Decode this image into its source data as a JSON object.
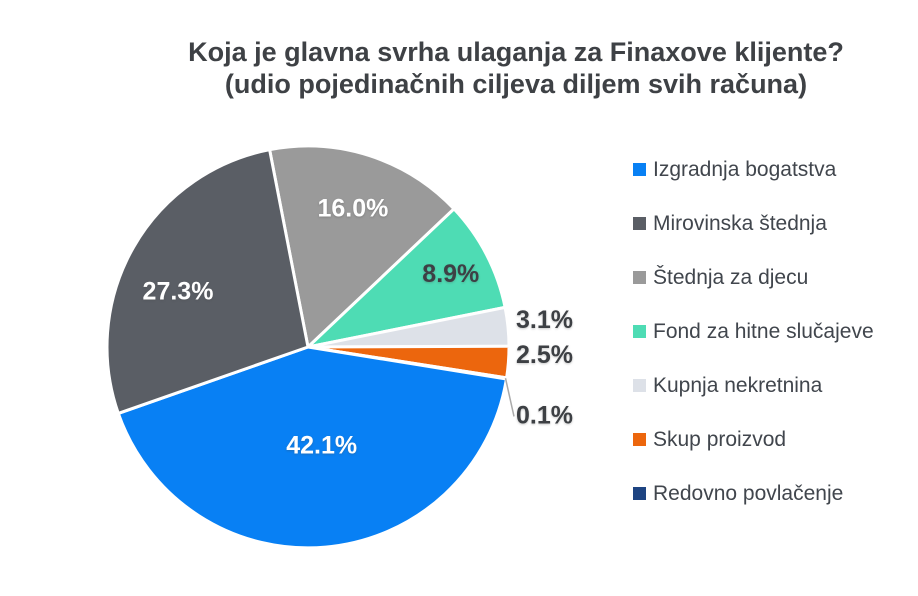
{
  "chart_data": {
    "type": "pie",
    "title": "Koja je glavna svrha ulaganja za Finaxove klijente?",
    "subtitle": "(udio pojedinačnih ciljeva diljem svih računa)",
    "legend_position": "right",
    "start_angle_deg": -11,
    "direction": "clockwise",
    "angular_order": [
      2,
      3,
      4,
      5,
      6,
      0,
      1
    ],
    "separator_color": "#ffffff",
    "leader_line_color": "#aaaaaa",
    "slices": [
      {
        "label": "Izgradnja bogatstva",
        "value": 42.1,
        "display": "42.1%",
        "color": "#0880f4",
        "label_placement": "inside",
        "label_color": "#ffffff",
        "label_r": 0.49,
        "label_angle": 172
      },
      {
        "label": "Mirovinska štednja",
        "value": 27.3,
        "display": "27.3%",
        "color": "#5a5e65",
        "label_placement": "inside",
        "label_color": "#ffffff",
        "label_r": 0.705,
        "label_angle": 293.5
      },
      {
        "label": "Štednja za djecu",
        "value": 16.0,
        "display": "16.0%",
        "color": "#9a9a9a",
        "label_placement": "inside",
        "label_color": "#ffffff",
        "label_r": 0.73
      },
      {
        "label": "Fond za hitne slučajeve",
        "value": 8.9,
        "display": "8.9%",
        "color": "#4edcb4",
        "label_placement": "inside",
        "label_color": "#3d4045",
        "label_r": 0.8
      },
      {
        "label": "Kupnja nekretnina",
        "value": 3.1,
        "display": "3.1%",
        "color": "#dde1e8",
        "label_placement": "outside",
        "label_color": "#3d4044"
      },
      {
        "label": "Skup proizvod",
        "value": 2.5,
        "display": "2.5%",
        "color": "#ec660d",
        "label_placement": "outside",
        "label_color": "#3d4044"
      },
      {
        "label": "Redovno povlačenje",
        "value": 0.1,
        "display": "0.1%",
        "color": "#1e4482",
        "label_placement": "outside",
        "label_color": "#3d4044",
        "leader": true,
        "label_dy": 36
      }
    ]
  }
}
